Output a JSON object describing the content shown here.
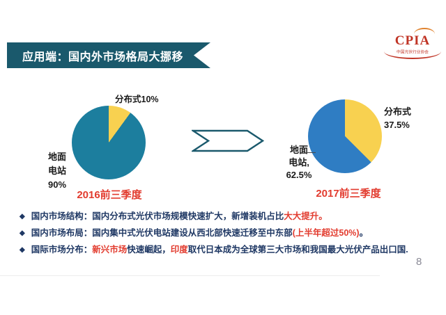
{
  "banner": {
    "title": "应用端：国内外市场格局大挪移"
  },
  "logo": {
    "name": "CPIA",
    "subtitle": "中国光伏行业协会"
  },
  "chart_data": [
    {
      "type": "pie",
      "title": "2016前三季度",
      "unit": "%",
      "start_angle_deg": 0,
      "slices": [
        {
          "name": "分布式",
          "value": 10,
          "color": "#F8D150",
          "label": "分布式10%"
        },
        {
          "name": "地面电站",
          "value": 90,
          "color": "#1C7E9E",
          "label_lines": [
            "地面",
            "电站",
            "90%"
          ]
        }
      ]
    },
    {
      "type": "pie",
      "title": "2017前三季度",
      "unit": "%",
      "start_angle_deg": 0,
      "slices": [
        {
          "name": "分布式",
          "value": 37.5,
          "color": "#F8D150",
          "label_lines": [
            "分布式",
            "37.5%"
          ]
        },
        {
          "name": "地面电站",
          "value": 62.5,
          "color": "#2F7DC3",
          "label_lines": [
            "地面",
            "电站,",
            "62.5%"
          ]
        }
      ]
    }
  ],
  "bullets_marker": "◆",
  "bullets": [
    {
      "segments": [
        {
          "t": "国内市场结构：国内分布式光伏市场规模快速扩大，新增装机占比",
          "c": "navy"
        },
        {
          "t": "大大提升。",
          "c": "red"
        }
      ]
    },
    {
      "segments": [
        {
          "t": "国内市场布局：国内集中式光伏电站建设从西北部快速迁移至中东部",
          "c": "navy"
        },
        {
          "t": "(上半年超过50%)",
          "c": "red"
        },
        {
          "t": "。",
          "c": "navy"
        }
      ]
    },
    {
      "segments": [
        {
          "t": "国际市场分布：",
          "c": "navy"
        },
        {
          "t": "新兴市场",
          "c": "red"
        },
        {
          "t": "快速崛起，",
          "c": "navy"
        },
        {
          "t": "印度",
          "c": "red"
        },
        {
          "t": "取代日本成为全球第三大市场和我国最大光伏产品出口国.",
          "c": "navy"
        }
      ]
    }
  ],
  "page_number": "8",
  "colors": {
    "banner": "#1A596C",
    "pie_2016_main": "#1C7E9E",
    "pie_2017_main": "#2F7DC3",
    "pie_distributed": "#F8D150",
    "accent_red": "#E23B2E",
    "text_navy": "#1F3864"
  }
}
